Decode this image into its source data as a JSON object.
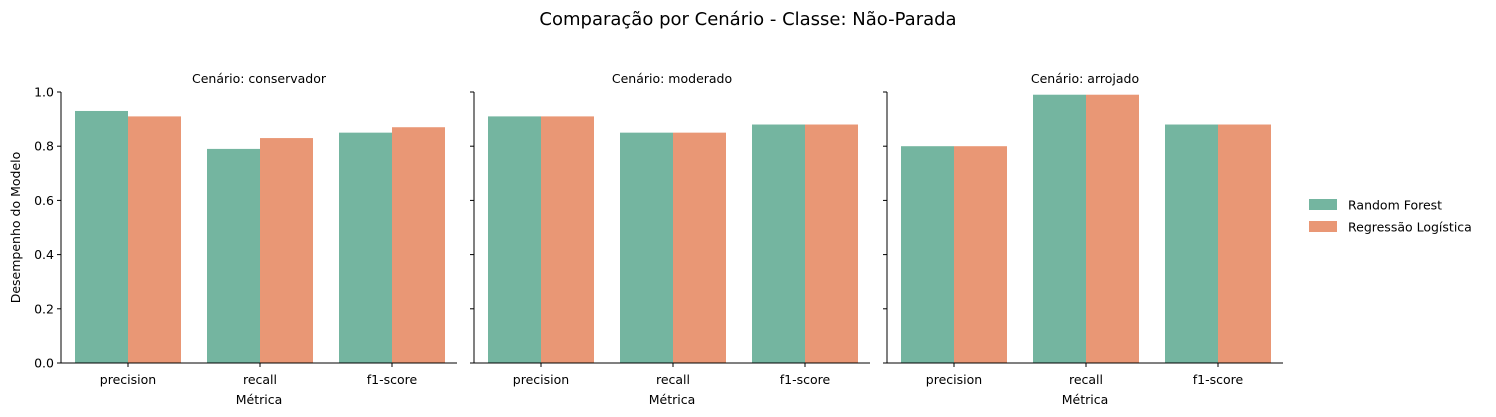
{
  "chart_data": {
    "type": "bar",
    "title": "Comparação por Cenário - Classe: Não-Parada",
    "ylabel": "Desempenho do Modelo",
    "xlabel": "Métrica",
    "ylim": [
      0,
      1.0
    ],
    "yticks": [
      "0.0",
      "0.2",
      "0.4",
      "0.6",
      "0.8",
      "1.0"
    ],
    "categories": [
      "precision",
      "recall",
      "f1-score"
    ],
    "legend": {
      "placement": "right",
      "entries": [
        {
          "name": "Random Forest",
          "color": "#74b5a0"
        },
        {
          "name": "Regressão Logística",
          "color": "#e99775"
        }
      ]
    },
    "panels": [
      {
        "title": "Cenário: conservador",
        "series": [
          {
            "name": "Random Forest",
            "values": [
              0.93,
              0.79,
              0.85
            ]
          },
          {
            "name": "Regressão Logística",
            "values": [
              0.91,
              0.83,
              0.87
            ]
          }
        ]
      },
      {
        "title": "Cenário: moderado",
        "series": [
          {
            "name": "Random Forest",
            "values": [
              0.91,
              0.85,
              0.88
            ]
          },
          {
            "name": "Regressão Logística",
            "values": [
              0.91,
              0.85,
              0.88
            ]
          }
        ]
      },
      {
        "title": "Cenário: arrojado",
        "series": [
          {
            "name": "Random Forest",
            "values": [
              0.8,
              0.99,
              0.88
            ]
          },
          {
            "name": "Regressão Logística",
            "values": [
              0.8,
              0.99,
              0.88
            ]
          }
        ]
      }
    ]
  }
}
